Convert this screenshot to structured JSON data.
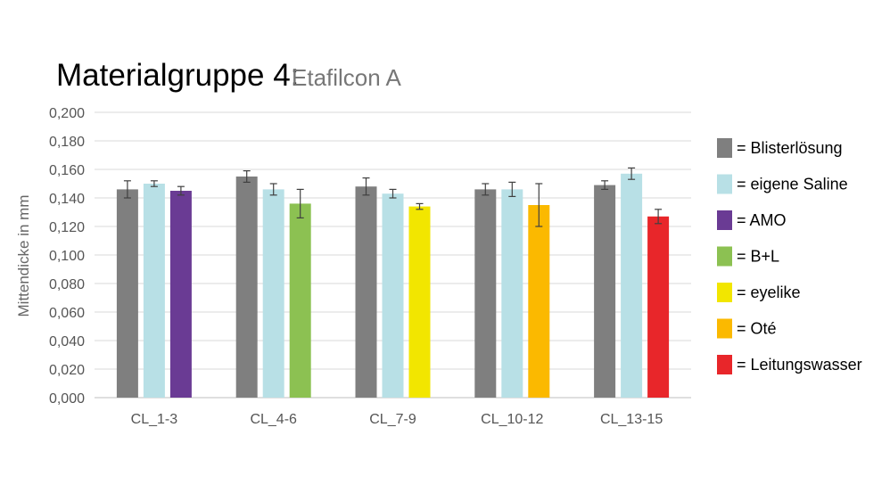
{
  "chart_data": {
    "type": "bar",
    "title": "Materialgruppe 4:",
    "subtitle": "Etafilcon A",
    "ylabel": "Mittendicke in mm",
    "xlabel": "",
    "ylim": [
      0,
      0.2
    ],
    "yticks": [
      "0,000",
      "0,020",
      "0,040",
      "0,060",
      "0,080",
      "0,100",
      "0,120",
      "0,140",
      "0,160",
      "0,180",
      "0,200"
    ],
    "grid": true,
    "legend_position": "right",
    "categories": [
      "CL_1-3",
      "CL_4-6",
      "CL_7-9",
      "CL_10-12",
      "CL_13-15"
    ],
    "series": [
      {
        "name": "= Blisterlösung",
        "color": "#7f7f7f"
      },
      {
        "name": "= eigene Saline",
        "color": "#b8e0e6"
      },
      {
        "name": "= AMO",
        "color": "#6a3b94"
      },
      {
        "name": "= B+L",
        "color": "#8cc152"
      },
      {
        "name": "= eyelike",
        "color": "#f2e600"
      },
      {
        "name": "= Oté",
        "color": "#fbb900"
      },
      {
        "name": "= Leitungswasser",
        "color": "#e8262a"
      }
    ],
    "groups": [
      {
        "category": "CL_1-3",
        "bars": [
          {
            "series": 0,
            "value": 0.146,
            "error": 0.006
          },
          {
            "series": 1,
            "value": 0.15,
            "error": 0.002
          },
          {
            "series": 2,
            "value": 0.145,
            "error": 0.003
          }
        ]
      },
      {
        "category": "CL_4-6",
        "bars": [
          {
            "series": 0,
            "value": 0.155,
            "error": 0.004
          },
          {
            "series": 1,
            "value": 0.146,
            "error": 0.004
          },
          {
            "series": 3,
            "value": 0.136,
            "error": 0.01
          }
        ]
      },
      {
        "category": "CL_7-9",
        "bars": [
          {
            "series": 0,
            "value": 0.148,
            "error": 0.006
          },
          {
            "series": 1,
            "value": 0.143,
            "error": 0.003
          },
          {
            "series": 4,
            "value": 0.134,
            "error": 0.002
          }
        ]
      },
      {
        "category": "CL_10-12",
        "bars": [
          {
            "series": 0,
            "value": 0.146,
            "error": 0.004
          },
          {
            "series": 1,
            "value": 0.146,
            "error": 0.005
          },
          {
            "series": 5,
            "value": 0.135,
            "error": 0.015
          }
        ]
      },
      {
        "category": "CL_13-15",
        "bars": [
          {
            "series": 0,
            "value": 0.149,
            "error": 0.003
          },
          {
            "series": 1,
            "value": 0.157,
            "error": 0.004
          },
          {
            "series": 6,
            "value": 0.127,
            "error": 0.005
          }
        ]
      }
    ]
  }
}
